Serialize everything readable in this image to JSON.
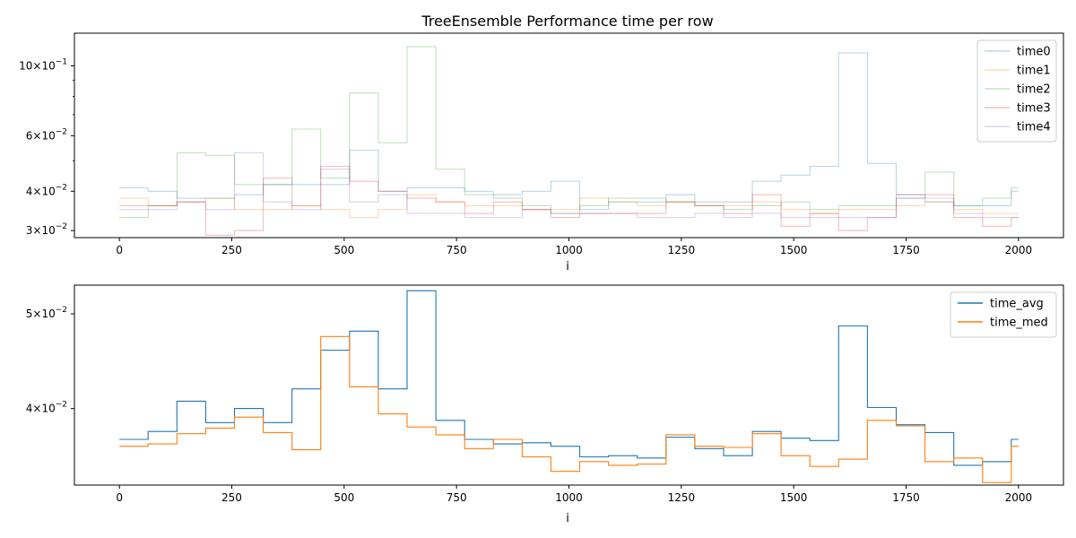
{
  "chart_data": [
    {
      "type": "line",
      "title": "TreeEnsemble Performance time per row",
      "xlabel": "i",
      "ylabel": "",
      "yscale": "log",
      "xlim": [
        -100,
        2100
      ],
      "ylim": [
        0.0285,
        0.127
      ],
      "xticks": [
        0,
        250,
        500,
        750,
        1000,
        1250,
        1500,
        1750,
        2000
      ],
      "xtick_labels": [
        "0",
        "250",
        "500",
        "750",
        "1000",
        "1250",
        "1500",
        "1750",
        "2000"
      ],
      "yticks": [
        {
          "value": 0.03,
          "coef": "3",
          "exp": "−2"
        },
        {
          "value": 0.04,
          "coef": "4",
          "exp": "−2"
        },
        {
          "value": 0.06,
          "coef": "6",
          "exp": "−2"
        },
        {
          "value": 0.1,
          "coef": "10",
          "exp": "−1"
        }
      ],
      "legend": "top-right",
      "grid": false,
      "x": [
        0,
        64,
        128,
        192,
        256,
        320,
        384,
        448,
        512,
        576,
        640,
        704,
        768,
        832,
        896,
        960,
        1024,
        1088,
        1152,
        1216,
        1280,
        1344,
        1408,
        1472,
        1536,
        1600,
        1664,
        1728,
        1792,
        1856,
        1920,
        1984,
        2000
      ],
      "series": [
        {
          "name": "time0",
          "color": "#1f77b4",
          "values": [
            0.041,
            0.04,
            0.038,
            0.038,
            0.039,
            0.042,
            0.042,
            0.042,
            0.054,
            0.04,
            0.041,
            0.041,
            0.04,
            0.039,
            0.04,
            0.043,
            0.035,
            0.037,
            0.037,
            0.039,
            0.037,
            0.037,
            0.043,
            0.045,
            0.048,
            0.11,
            0.049,
            0.039,
            0.037,
            0.036,
            0.036,
            0.04,
            0.04
          ]
        },
        {
          "name": "time1",
          "color": "#ff7f0e",
          "values": [
            0.038,
            0.036,
            0.037,
            0.038,
            0.035,
            0.035,
            0.036,
            0.035,
            0.033,
            0.035,
            0.039,
            0.037,
            0.036,
            0.036,
            0.035,
            0.035,
            0.038,
            0.037,
            0.036,
            0.037,
            0.036,
            0.036,
            0.037,
            0.035,
            0.034,
            0.035,
            0.035,
            0.036,
            0.037,
            0.035,
            0.034,
            0.034,
            0.034
          ]
        },
        {
          "name": "time2",
          "color": "#2ca02c",
          "values": [
            0.033,
            0.036,
            0.053,
            0.052,
            0.042,
            0.042,
            0.063,
            0.044,
            0.082,
            0.057,
            0.115,
            0.047,
            0.039,
            0.038,
            0.036,
            0.034,
            0.036,
            0.038,
            0.038,
            0.037,
            0.036,
            0.035,
            0.036,
            0.037,
            0.035,
            0.036,
            0.036,
            0.038,
            0.046,
            0.036,
            0.038,
            0.041,
            0.041
          ]
        },
        {
          "name": "time3",
          "color": "#d62728",
          "values": [
            0.036,
            0.036,
            0.037,
            0.029,
            0.03,
            0.044,
            0.036,
            0.048,
            0.043,
            0.04,
            0.038,
            0.037,
            0.034,
            0.037,
            0.035,
            0.033,
            0.034,
            0.034,
            0.034,
            0.037,
            0.036,
            0.034,
            0.039,
            0.031,
            0.034,
            0.03,
            0.033,
            0.039,
            0.039,
            0.033,
            0.031,
            0.033,
            0.033
          ]
        },
        {
          "name": "time4",
          "color": "#9467bd",
          "values": [
            0.035,
            0.035,
            0.037,
            0.035,
            0.053,
            0.037,
            0.035,
            0.047,
            0.037,
            0.039,
            0.034,
            0.034,
            0.033,
            0.033,
            0.035,
            0.034,
            0.034,
            0.034,
            0.033,
            0.033,
            0.034,
            0.033,
            0.034,
            0.033,
            0.033,
            0.033,
            0.033,
            0.038,
            0.038,
            0.034,
            0.033,
            0.033,
            0.033
          ]
        }
      ]
    },
    {
      "type": "line",
      "title": "",
      "xlabel": "i",
      "ylabel": "",
      "yscale": "log",
      "xlim": [
        -100,
        2100
      ],
      "ylim": [
        0.0334,
        0.0535
      ],
      "xticks": [
        0,
        250,
        500,
        750,
        1000,
        1250,
        1500,
        1750,
        2000
      ],
      "xtick_labels": [
        "0",
        "250",
        "500",
        "750",
        "1000",
        "1250",
        "1500",
        "1750",
        "2000"
      ],
      "yticks": [
        {
          "value": 0.04,
          "coef": "4",
          "exp": "−2"
        },
        {
          "value": 0.05,
          "coef": "5",
          "exp": "−2"
        }
      ],
      "legend": "top-right",
      "grid": false,
      "x": [
        0,
        64,
        128,
        192,
        256,
        320,
        384,
        448,
        512,
        576,
        640,
        704,
        768,
        832,
        896,
        960,
        1024,
        1088,
        1152,
        1216,
        1280,
        1344,
        1408,
        1472,
        1536,
        1600,
        1664,
        1728,
        1792,
        1856,
        1920,
        1984,
        2000
      ],
      "series": [
        {
          "name": "time_avg",
          "color": "#1f77b4",
          "values": [
            0.0372,
            0.0379,
            0.0407,
            0.0387,
            0.04,
            0.0387,
            0.0419,
            0.0459,
            0.048,
            0.0419,
            0.0528,
            0.0389,
            0.0372,
            0.0368,
            0.0369,
            0.0366,
            0.0357,
            0.0358,
            0.0356,
            0.0374,
            0.0364,
            0.0358,
            0.0379,
            0.0373,
            0.0371,
            0.0486,
            0.0401,
            0.0385,
            0.0378,
            0.035,
            0.0353,
            0.0372,
            0.0372
          ]
        },
        {
          "name": "time_med",
          "color": "#ff7f0e",
          "values": [
            0.0366,
            0.0368,
            0.0377,
            0.0382,
            0.0392,
            0.0378,
            0.0363,
            0.0474,
            0.0421,
            0.0395,
            0.0383,
            0.0376,
            0.0364,
            0.0372,
            0.0357,
            0.0345,
            0.0353,
            0.035,
            0.0351,
            0.0376,
            0.0366,
            0.0365,
            0.0377,
            0.0358,
            0.0349,
            0.0355,
            0.0389,
            0.0384,
            0.0353,
            0.0356,
            0.0336,
            0.0366,
            0.0366
          ]
        }
      ]
    }
  ]
}
